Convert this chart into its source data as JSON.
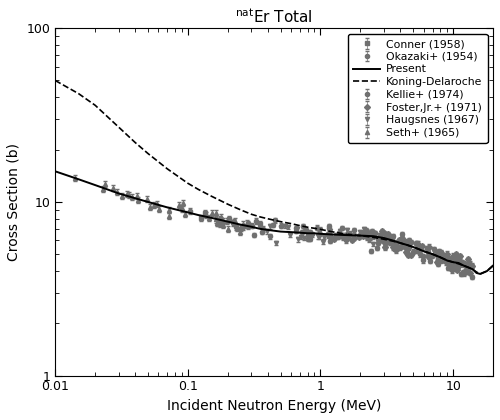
{
  "title": "$^{\\mathrm{nat}}$Er Total",
  "xlabel": "Incident Neutron Energy (MeV)",
  "ylabel": "Cross Section (b)",
  "xlim": [
    0.01,
    20
  ],
  "ylim": [
    1.0,
    100
  ],
  "legend_entries": [
    "Present",
    "Koning-Delaroche",
    "Kellie+ (1974)",
    "Foster,Jr.+ (1971)",
    "Haugsnes (1967)",
    "Seth+ (1965)",
    "Conner (1958)",
    "Okazaki+ (1954)"
  ],
  "line_color": "#000000",
  "data_color": "#707070"
}
